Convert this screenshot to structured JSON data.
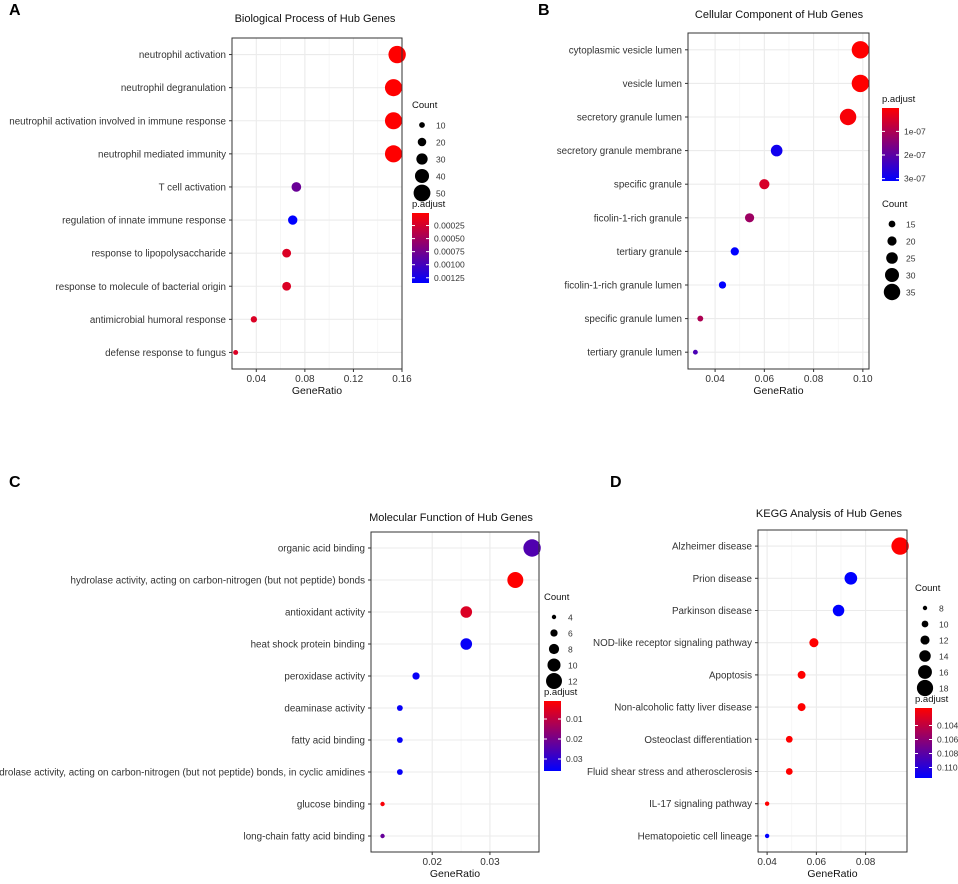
{
  "panels": [
    {
      "letter": "A"
    },
    {
      "letter": "B"
    },
    {
      "letter": "C"
    },
    {
      "letter": "D"
    }
  ],
  "chart_data": [
    {
      "type": "scatter",
      "title": "Biological Process of Hub Genes",
      "xlabel": "GeneRatio",
      "ylabel": "",
      "xlim": [
        0.02,
        0.16
      ],
      "xticks": [
        0.04,
        0.08,
        0.12,
        0.16
      ],
      "xtick_labels": [
        "0.04",
        "0.08",
        "0.12",
        "0.16"
      ],
      "categories": [
        "neutrophil activation",
        "neutrophil degranulation",
        "neutrophil activation involved in immune response",
        "neutrophil mediated immunity",
        "T cell activation",
        "regulation of innate immune response",
        "response to lipopolysaccharide",
        "response to molecule of bacterial origin",
        "antimicrobial humoral response",
        "defense response to fungus"
      ],
      "x": [
        0.156,
        0.153,
        0.153,
        0.153,
        0.073,
        0.07,
        0.065,
        0.065,
        0.038,
        0.023
      ],
      "count": [
        52,
        51,
        51,
        51,
        24,
        23,
        21,
        21,
        12,
        7
      ],
      "p_adjust": [
        1e-05,
        1e-05,
        1e-05,
        1e-05,
        0.0008,
        0.00135,
        0.0002,
        0.0002,
        0.0002,
        0.0002
      ],
      "size_legend": {
        "title": "Count",
        "values": [
          10,
          20,
          30,
          40,
          50
        ],
        "labels": [
          "10",
          "20",
          "30",
          "40",
          "50"
        ],
        "range": [
          5,
          52
        ]
      },
      "color_legend": {
        "title": "p.adjust",
        "values": [
          0.00025,
          0.0005,
          0.00075,
          0.001,
          0.00125
        ],
        "labels": [
          "0.00025",
          "0.00050",
          "0.00075",
          "0.00100",
          "0.00125"
        ],
        "range": [
          1e-05,
          0.00135
        ]
      },
      "grid": true
    },
    {
      "type": "scatter",
      "title": "Cellular Component of Hub Genes",
      "xlabel": "GeneRatio",
      "ylabel": "",
      "xlim": [
        0.029,
        0.1025
      ],
      "xticks": [
        0.04,
        0.06,
        0.08,
        0.1
      ],
      "xtick_labels": [
        "0.04",
        "0.06",
        "0.08",
        "0.10"
      ],
      "categories": [
        "cytoplasmic vesicle lumen",
        "vesicle lumen",
        "secretory granule lumen",
        "secretory granule membrane",
        "specific granule",
        "ficolin-1-rich granule",
        "tertiary granule",
        "ficolin-1-rich granule lumen",
        "specific granule lumen",
        "tertiary granule lumen"
      ],
      "x": [
        0.099,
        0.099,
        0.094,
        0.065,
        0.06,
        0.054,
        0.048,
        0.043,
        0.034,
        0.032
      ],
      "count": [
        37,
        37,
        35,
        25,
        22,
        20,
        18,
        16,
        13,
        11
      ],
      "p_adjust": [
        1e-09,
        1e-09,
        1e-08,
        2.9e-07,
        5e-08,
        1.2e-07,
        3.1e-07,
        3.1e-07,
        1e-07,
        2.2e-07
      ],
      "size_legend": {
        "title": "Count",
        "values": [
          15,
          20,
          25,
          30,
          35
        ],
        "labels": [
          "15",
          "20",
          "25",
          "30",
          "35"
        ],
        "range": [
          10,
          37
        ]
      },
      "color_legend": {
        "title": "p.adjust",
        "values": [
          1e-07,
          2e-07,
          3e-07
        ],
        "labels": [
          "1e-07",
          "2e-07",
          "3e-07"
        ],
        "range": [
          1e-09,
          3.1e-07
        ]
      },
      "grid": true
    },
    {
      "type": "scatter",
      "title": "Molecular Function of Hub Genes",
      "xlabel": "GeneRatio",
      "ylabel": "",
      "xlim": [
        0.0094,
        0.0385
      ],
      "xticks": [
        0.02,
        0.03
      ],
      "xtick_labels": [
        "0.02",
        "0.03"
      ],
      "categories": [
        "organic acid binding",
        "hydrolase activity, acting on carbon-nitrogen (but not peptide) bonds",
        "antioxidant activity",
        "heat shock protein binding",
        "peroxidase activity",
        "deaminase activity",
        "fatty acid binding",
        "hydrolase activity, acting on carbon-nitrogen (but not peptide) bonds, in cyclic amidines",
        "glucose binding",
        "long-chain fatty acid binding"
      ],
      "x": [
        0.0373,
        0.0344,
        0.0259,
        0.0259,
        0.0172,
        0.0144,
        0.0144,
        0.0144,
        0.0114,
        0.0114
      ],
      "count": [
        13,
        12,
        9,
        9,
        6,
        5,
        5,
        5,
        4,
        4
      ],
      "p_adjust": [
        0.025,
        0.001,
        0.006,
        0.035,
        0.035,
        0.035,
        0.035,
        0.035,
        0.002,
        0.022
      ],
      "size_legend": {
        "title": "Count",
        "values": [
          4,
          6,
          8,
          10,
          12
        ],
        "labels": [
          "4",
          "6",
          "8",
          "10",
          "12"
        ],
        "range": [
          4,
          13
        ]
      },
      "color_legend": {
        "title": "p.adjust",
        "values": [
          0.01,
          0.02,
          0.03
        ],
        "labels": [
          "0.01",
          "0.02",
          "0.03"
        ],
        "range": [
          0.001,
          0.036
        ]
      },
      "grid": true
    },
    {
      "type": "scatter",
      "title": "KEGG Analysis of Hub Genes",
      "xlabel": "GeneRatio",
      "ylabel": "",
      "xlim": [
        0.0363,
        0.0968
      ],
      "xticks": [
        0.04,
        0.06,
        0.08
      ],
      "xtick_labels": [
        "0.04",
        "0.06",
        "0.08"
      ],
      "categories": [
        "Alzheimer disease",
        "Prion disease",
        "Parkinson disease",
        "NOD-like receptor signaling pathway",
        "Apoptosis",
        "Non-alcoholic fatty liver disease",
        "Osteoclast differentiation",
        "Fluid shear stress and atherosclerosis",
        "IL-17 signaling pathway",
        "Hematopoietic cell lineage"
      ],
      "x": [
        0.094,
        0.074,
        0.069,
        0.059,
        0.054,
        0.054,
        0.049,
        0.049,
        0.04,
        0.04
      ],
      "count": [
        19,
        15,
        14,
        12,
        11,
        11,
        10,
        10,
        8,
        8
      ],
      "p_adjust": [
        0.1015,
        0.1115,
        0.1115,
        0.1015,
        0.1015,
        0.1015,
        0.1015,
        0.1015,
        0.1015,
        0.1115
      ],
      "size_legend": {
        "title": "Count",
        "values": [
          8,
          10,
          12,
          14,
          16,
          18
        ],
        "labels": [
          "8",
          "10",
          "12",
          "14",
          "16",
          "18"
        ],
        "range": [
          8,
          19
        ]
      },
      "color_legend": {
        "title": "p.adjust",
        "values": [
          0.104,
          0.106,
          0.108,
          0.11
        ],
        "labels": [
          "0.104",
          "0.106",
          "0.108",
          "0.110"
        ],
        "range": [
          0.1015,
          0.1115
        ]
      },
      "grid": true
    }
  ],
  "colors": {
    "low": "#FF0000",
    "high": "#0000FF",
    "grid": "#EBEBEB",
    "panel_border": "#333333"
  }
}
